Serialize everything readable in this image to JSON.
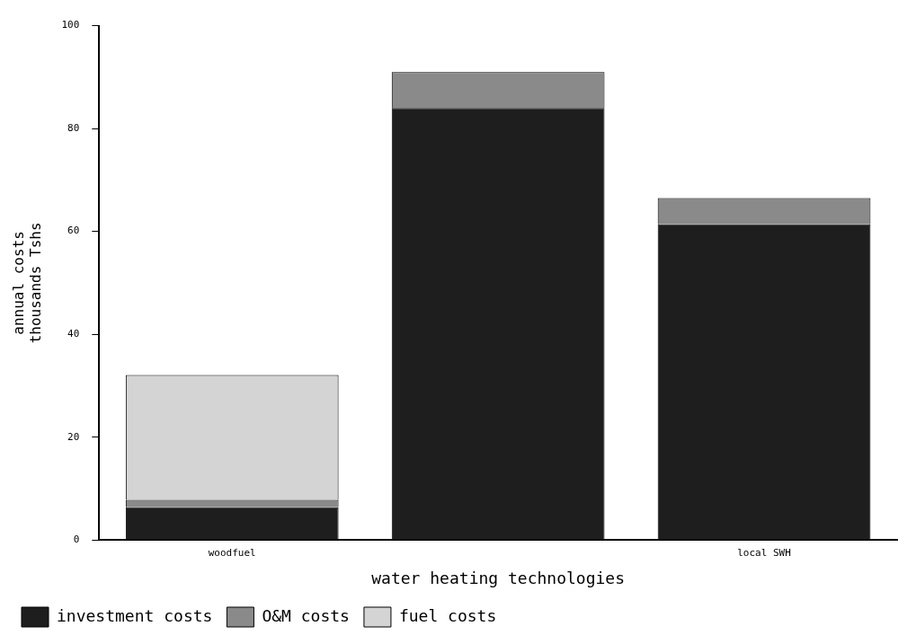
{
  "chart_data": {
    "type": "bar",
    "stacked": true,
    "categories": [
      "woodfuel",
      null,
      "local SWH"
    ],
    "xlabel": "water heating technologies",
    "ylabel": "annual costs\nthousands Tshs",
    "series": [
      {
        "name": "investment costs",
        "color": "#1e1e1e",
        "values": [
          6.4,
          84,
          61.4
        ]
      },
      {
        "name": "O&M costs",
        "color": "#8a8a8a",
        "values": [
          1.4,
          7,
          5.1
        ]
      },
      {
        "name": "fuel costs",
        "color": "#d4d4d4",
        "values": [
          24.3,
          0,
          0
        ]
      }
    ],
    "ylim": [
      0,
      100
    ],
    "yticks": [
      0,
      20,
      40,
      60,
      80,
      100
    ],
    "grid": false,
    "legend": "bottom left"
  }
}
